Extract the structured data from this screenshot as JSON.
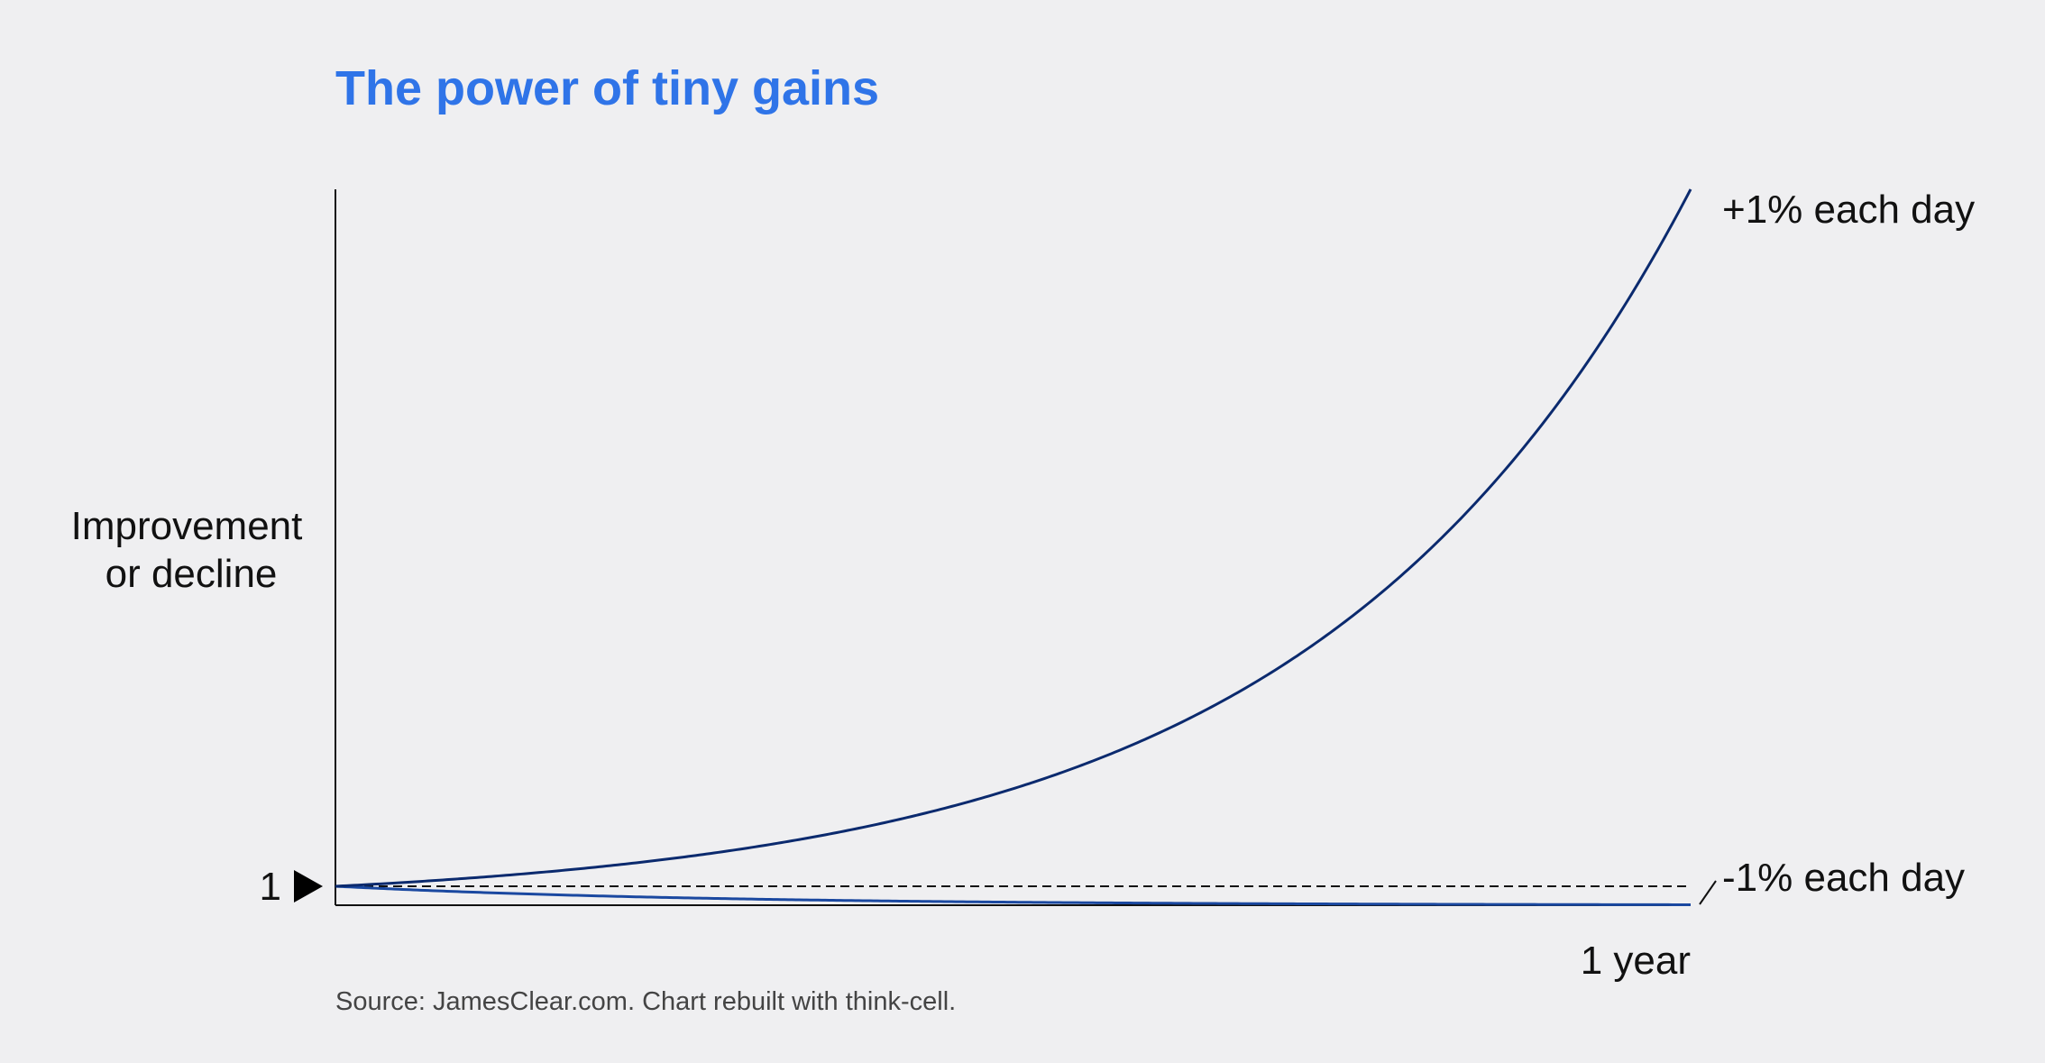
{
  "chart_data": {
    "type": "line",
    "title": "The power of tiny gains",
    "ylabel_lines": [
      "Improvement",
      "or decline"
    ],
    "xlabel": "1 year",
    "baseline_label": "1",
    "baseline_value": 1,
    "x_range": [
      0,
      365
    ],
    "ylim": [
      0,
      37.78
    ],
    "source": "Source: JamesClear.com. Chart rebuilt with think-cell.",
    "series": [
      {
        "name": "+1% each day",
        "daily_rate": 0.01,
        "x": [
          0,
          30,
          60,
          90,
          120,
          150,
          180,
          210,
          240,
          270,
          300,
          330,
          365
        ],
        "values": [
          1,
          1.35,
          1.82,
          2.45,
          3.3,
          4.45,
          6.0,
          8.09,
          10.9,
          14.69,
          19.79,
          26.7,
          37.78
        ]
      },
      {
        "name": "-1% each day",
        "daily_rate": -0.01,
        "x": [
          0,
          30,
          60,
          90,
          120,
          150,
          180,
          210,
          240,
          270,
          300,
          330,
          365
        ],
        "values": [
          1,
          0.74,
          0.55,
          0.4,
          0.3,
          0.22,
          0.16,
          0.12,
          0.09,
          0.07,
          0.05,
          0.04,
          0.03
        ]
      }
    ],
    "colors": {
      "title": "#2f74e8",
      "series_up": "#0b2a6e",
      "series_down": "#1a48a0",
      "axis": "#111111",
      "baseline": "#111111",
      "background": "#efeff1"
    }
  }
}
